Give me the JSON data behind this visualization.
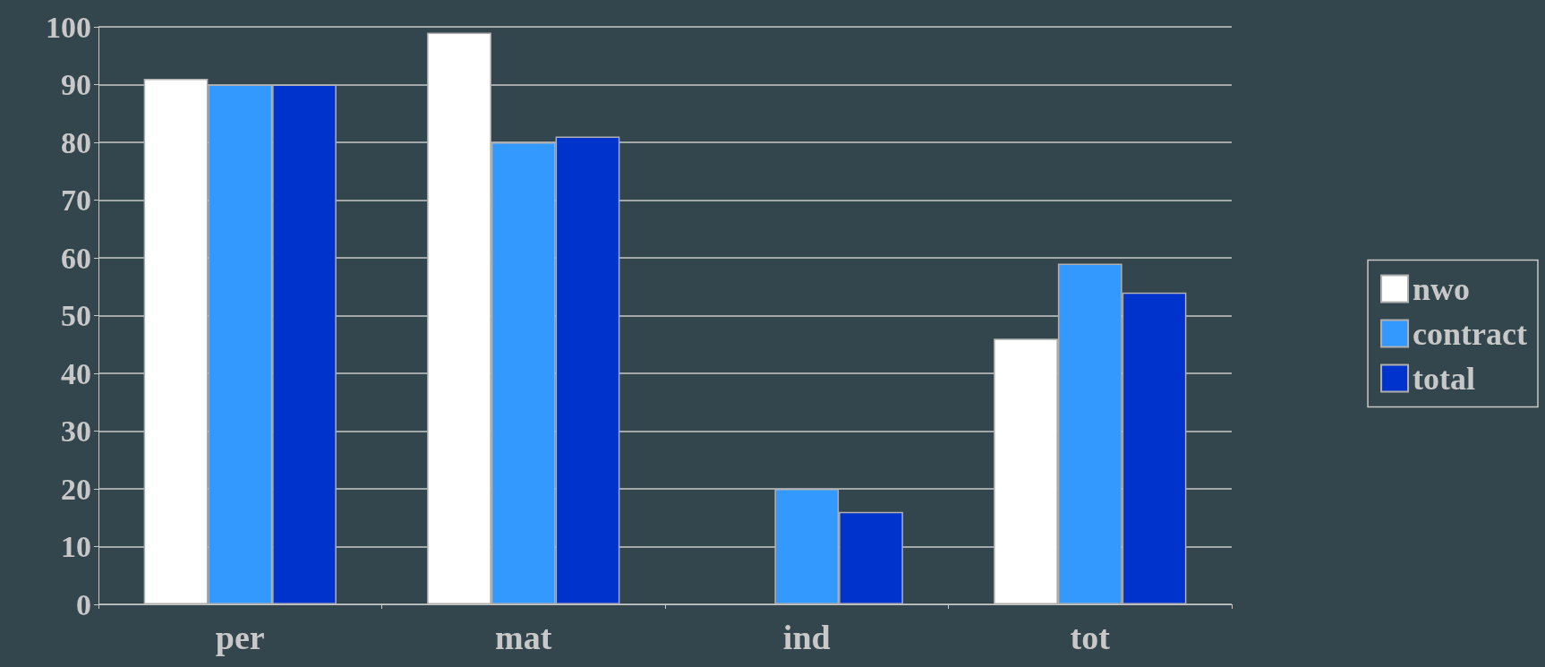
{
  "chart_data": {
    "type": "bar",
    "categories": [
      "per",
      "mat",
      "ind",
      "tot"
    ],
    "series": [
      {
        "name": "nwo",
        "color": "#ffffff",
        "values": [
          91,
          99,
          0,
          46
        ]
      },
      {
        "name": "contract",
        "color": "#3399ff",
        "values": [
          90,
          80,
          20,
          59
        ]
      },
      {
        "name": "total",
        "color": "#0033cc",
        "values": [
          90,
          81,
          16,
          54
        ]
      }
    ],
    "ylim": [
      0,
      100
    ],
    "yticks": [
      0,
      10,
      20,
      30,
      40,
      50,
      60,
      70,
      80,
      90,
      100
    ],
    "grid": "y",
    "legend": "right"
  }
}
